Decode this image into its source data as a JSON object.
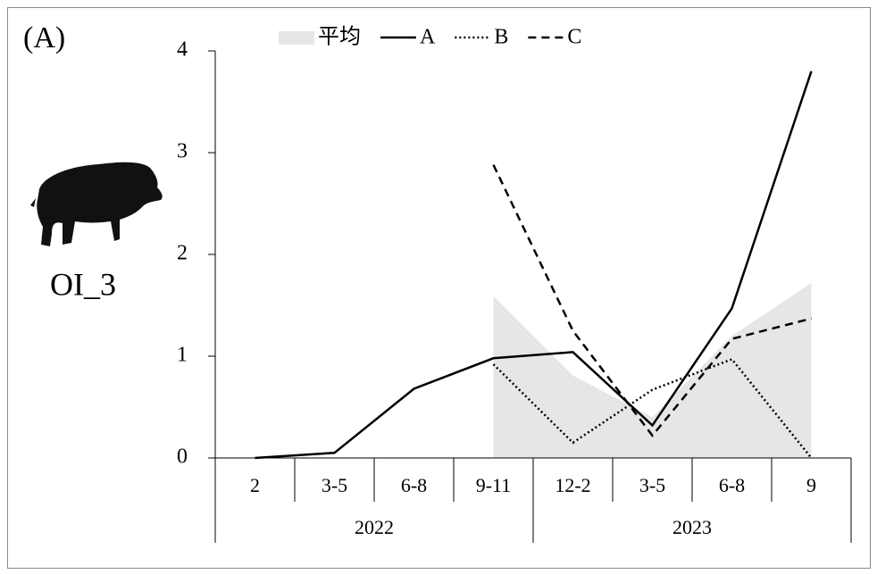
{
  "chart_data": {
    "type": "line",
    "annotations": [
      "(A)",
      "OI_3"
    ],
    "categories": [
      "2",
      "3-5",
      "6-8",
      "9-11",
      "12-2",
      "3-5",
      "6-8",
      "9"
    ],
    "x_groups": [
      "2022",
      "2022",
      "2022",
      "2022",
      "2023",
      "2023",
      "2023",
      "2023"
    ],
    "series": [
      {
        "name": "平均",
        "style": "area",
        "color": "#e6e6e6",
        "values": [
          null,
          null,
          null,
          1.59,
          0.81,
          0.4,
          1.2,
          1.72
        ]
      },
      {
        "name": "A",
        "style": "solid",
        "color": "#000000",
        "values": [
          0,
          0.05,
          0.68,
          0.98,
          1.04,
          0.32,
          1.47,
          3.8
        ]
      },
      {
        "name": "B",
        "style": "dotted",
        "color": "#000000",
        "values": [
          null,
          null,
          null,
          0.92,
          0.15,
          0.67,
          0.97,
          0
        ]
      },
      {
        "name": "C",
        "style": "dashed",
        "color": "#000000",
        "values": [
          null,
          null,
          null,
          2.88,
          1.25,
          0.22,
          1.17,
          1.37
        ]
      }
    ],
    "ylim": [
      0,
      4
    ],
    "yticks": [
      0,
      1,
      2,
      3,
      4
    ],
    "legend": "top"
  }
}
